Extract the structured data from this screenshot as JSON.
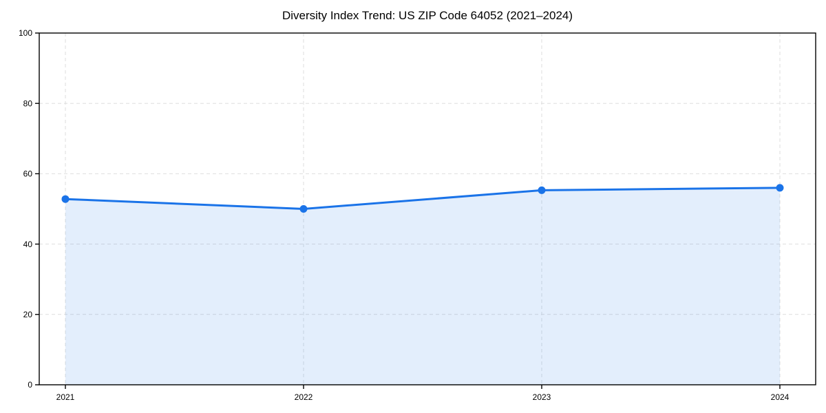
{
  "chart_data": {
    "type": "area",
    "title": "Diversity Index Trend: US ZIP Code 64052 (2021–2024)",
    "categories": [
      "2021",
      "2022",
      "2023",
      "2024"
    ],
    "values": [
      52.8,
      50.0,
      55.3,
      56.0
    ],
    "xlabel": "",
    "ylabel": "",
    "ylim": [
      0,
      100
    ],
    "yticks": [
      0,
      20,
      40,
      60,
      80,
      100
    ],
    "grid": true,
    "legend": "none",
    "line_color": "#1a73e8",
    "marker_color": "#1a73e8",
    "fill_color": "rgba(26,115,232,0.12)",
    "grid_color": "#dedede",
    "spine_color": "#000000"
  }
}
